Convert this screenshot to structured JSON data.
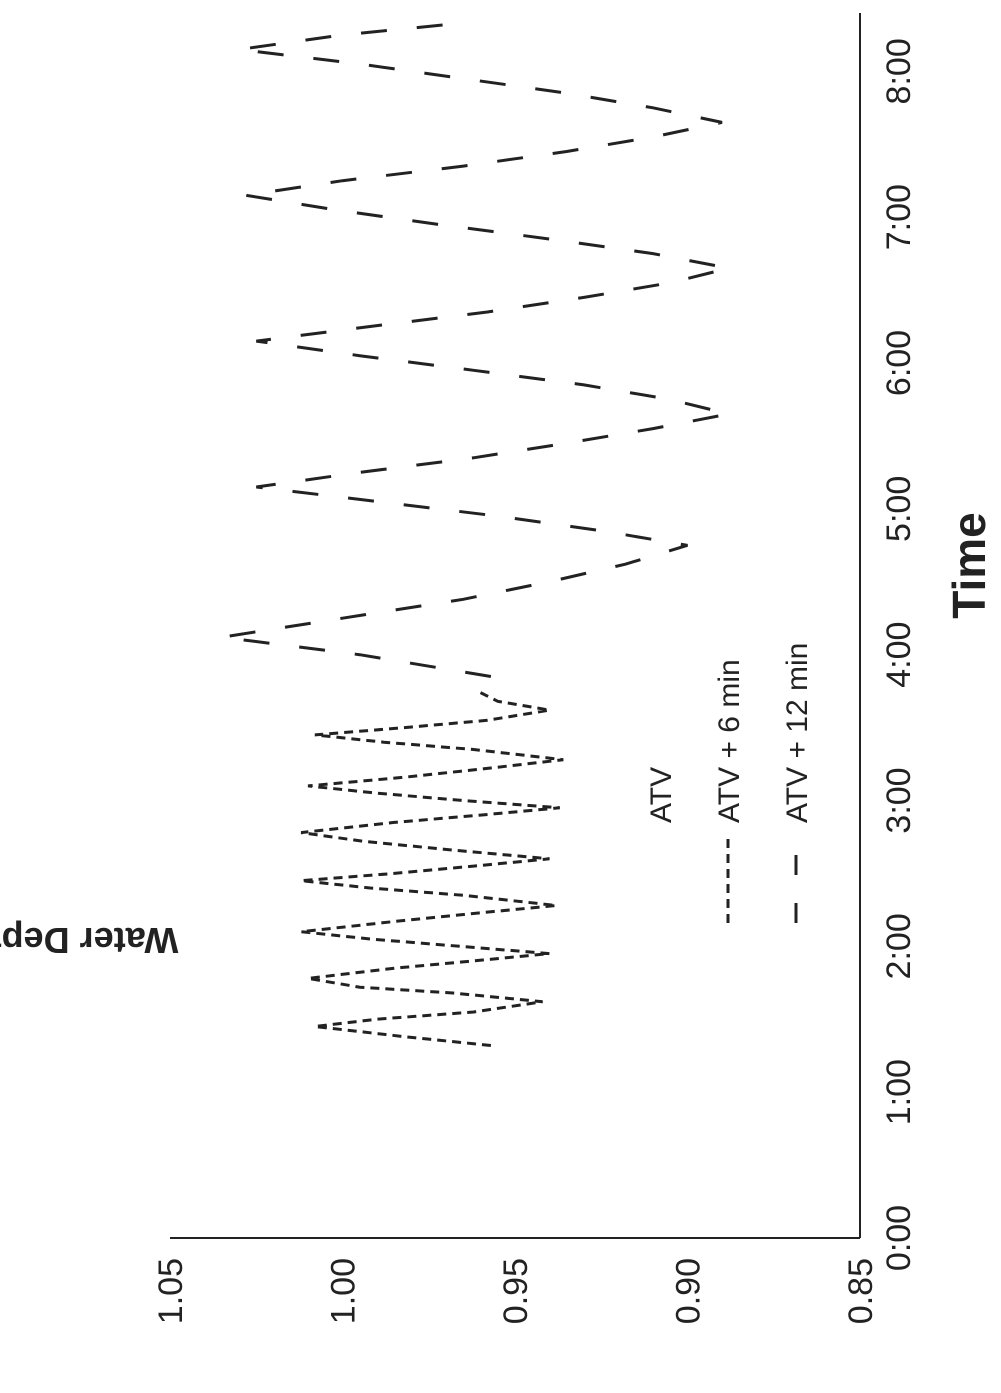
{
  "chart_data": {
    "type": "line",
    "title": "",
    "xlabel": "Time",
    "ylabel": "Water Depth (m)",
    "xlim": [
      0,
      8.4
    ],
    "ylim": [
      0.85,
      1.05
    ],
    "x_ticks": [
      {
        "value": 0,
        "label": "0:00"
      },
      {
        "value": 1,
        "label": "1:00"
      },
      {
        "value": 2,
        "label": "2:00"
      },
      {
        "value": 3,
        "label": "3:00"
      },
      {
        "value": 4,
        "label": "4:00"
      },
      {
        "value": 5,
        "label": "5:00"
      },
      {
        "value": 6,
        "label": "6:00"
      },
      {
        "value": 7,
        "label": "7:00"
      },
      {
        "value": 8,
        "label": "8:00"
      }
    ],
    "y_ticks": [
      {
        "value": 0.85,
        "label": "0.85"
      },
      {
        "value": 0.9,
        "label": "0.90"
      },
      {
        "value": 0.95,
        "label": "0.95"
      },
      {
        "value": 1.0,
        "label": "1.00"
      },
      {
        "value": 1.05,
        "label": "1.05"
      }
    ],
    "legend_location": "lower-center",
    "legend": [
      {
        "label": "ATV",
        "style": "solid"
      },
      {
        "label": "ATV + 6 min",
        "style": "dotted"
      },
      {
        "label": "ATV + 12 min",
        "style": "dashed"
      }
    ],
    "series": [
      {
        "name": "ATV + 6 min",
        "style": "dotted",
        "color": "#222222",
        "x": [
          1.32,
          1.38,
          1.45,
          1.5,
          1.55,
          1.62,
          1.68,
          1.72,
          1.78,
          1.85,
          1.9,
          1.95,
          2.0,
          2.05,
          2.1,
          2.17,
          2.23,
          2.28,
          2.35,
          2.4,
          2.45,
          2.5,
          2.55,
          2.6,
          2.66,
          2.72,
          2.78,
          2.85,
          2.9,
          2.95,
          3.0,
          3.05,
          3.1,
          3.16,
          3.22,
          3.28,
          3.35,
          3.4,
          3.45,
          3.5,
          3.55,
          3.62,
          3.68,
          3.74
        ],
        "y": [
          0.957,
          0.982,
          1.008,
          0.99,
          0.962,
          0.942,
          0.968,
          0.995,
          1.01,
          0.985,
          0.962,
          0.94,
          0.966,
          0.992,
          1.012,
          0.985,
          0.96,
          0.938,
          0.965,
          0.992,
          1.012,
          0.985,
          0.962,
          0.94,
          0.968,
          0.994,
          1.012,
          0.985,
          0.96,
          0.937,
          0.965,
          0.99,
          1.01,
          0.982,
          0.958,
          0.936,
          0.962,
          0.988,
          1.008,
          0.982,
          0.958,
          0.94,
          0.955,
          0.96
        ]
      },
      {
        "name": "ATV + 12 min",
        "style": "dashed",
        "color": "#222222",
        "x": [
          3.85,
          4.0,
          4.12,
          4.25,
          4.38,
          4.5,
          4.62,
          4.75,
          4.85,
          4.95,
          5.05,
          5.15,
          5.25,
          5.35,
          5.45,
          5.55,
          5.65,
          5.75,
          5.85,
          5.95,
          6.05,
          6.15,
          6.25,
          6.35,
          6.45,
          6.55,
          6.65,
          6.75,
          6.85,
          6.95,
          7.05,
          7.15,
          7.25,
          7.35,
          7.45,
          7.55,
          7.65,
          7.75,
          7.85,
          7.95,
          8.05,
          8.15,
          8.25,
          8.32
        ],
        "y": [
          0.957,
          0.995,
          1.035,
          1.0,
          0.965,
          0.94,
          0.918,
          0.9,
          0.925,
          0.955,
          0.99,
          1.025,
          0.995,
          0.962,
          0.935,
          0.91,
          0.888,
          0.905,
          0.93,
          0.962,
          0.995,
          1.025,
          0.992,
          0.958,
          0.93,
          0.905,
          0.888,
          0.91,
          0.94,
          0.972,
          1.002,
          1.028,
          1.0,
          0.965,
          0.935,
          0.91,
          0.89,
          0.91,
          0.935,
          0.965,
          0.995,
          1.03,
          1.0,
          0.97
        ]
      }
    ]
  }
}
